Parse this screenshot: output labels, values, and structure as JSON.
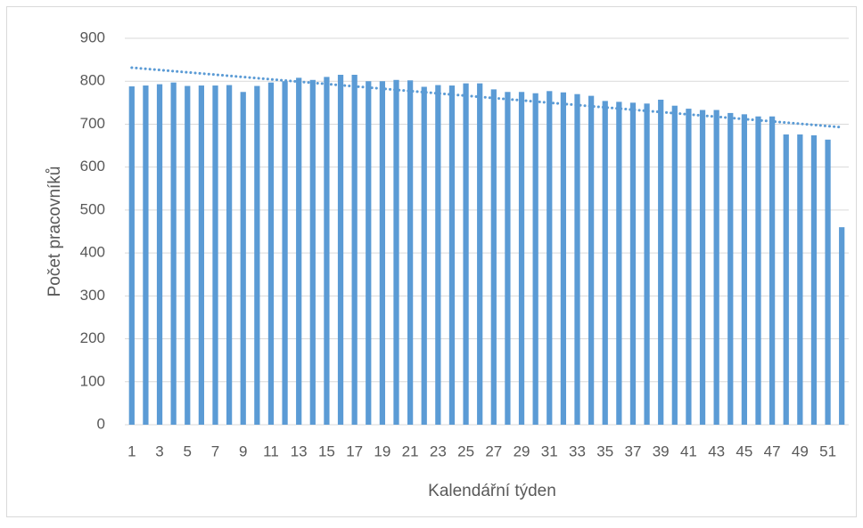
{
  "chart_data": {
    "type": "bar",
    "x_axis_title": "Kalendářní týden",
    "y_axis_title": "Počet pracovníků",
    "categories": [
      1,
      null,
      3,
      null,
      5,
      null,
      7,
      null,
      9,
      null,
      11,
      null,
      13,
      null,
      15,
      null,
      17,
      null,
      19,
      null,
      21,
      null,
      23,
      null,
      25,
      null,
      27,
      null,
      29,
      null,
      31,
      null,
      33,
      null,
      35,
      null,
      37,
      null,
      39,
      null,
      41,
      null,
      43,
      null,
      45,
      null,
      47,
      null,
      49,
      null,
      51,
      null
    ],
    "values": [
      788,
      790,
      793,
      797,
      789,
      790,
      790,
      791,
      775,
      789,
      797,
      800,
      808,
      803,
      810,
      815,
      815,
      800,
      800,
      803,
      802,
      787,
      791,
      790,
      795,
      795,
      781,
      775,
      775,
      772,
      777,
      774,
      770,
      766,
      754,
      752,
      750,
      748,
      757,
      743,
      736,
      733,
      733,
      726,
      723,
      718,
      718,
      676,
      676,
      674,
      664,
      460
    ],
    "color": "#5b9bd5",
    "ylim": [
      0,
      900
    ],
    "yticks": [
      0,
      100,
      200,
      300,
      400,
      500,
      600,
      700,
      800,
      900
    ],
    "grid": true,
    "trendline": "linear"
  }
}
